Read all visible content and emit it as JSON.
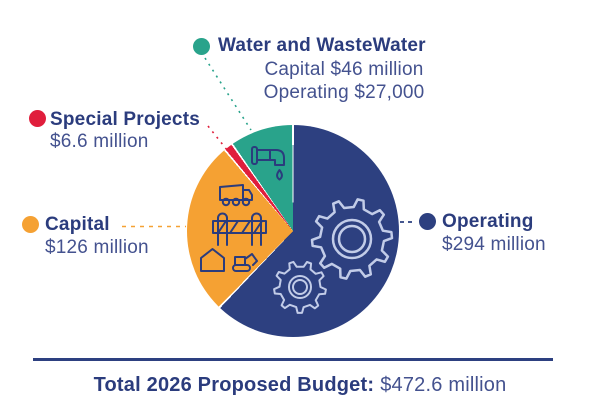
{
  "colors": {
    "background": "#ffffff",
    "operating": "#2D4080",
    "capital": "#F5A133",
    "special_projects": "#E01E3C",
    "water": "#29A38B",
    "heading_text": "#2B3C7D",
    "body_text": "#44528F",
    "gear_outline": "#C2CCE8",
    "icon_outline": "#2B3C7D",
    "rule": "#2D4080"
  },
  "chart_data": {
    "type": "pie",
    "direction": "clockwise",
    "start_angle_deg": 0,
    "slices": [
      {
        "key": "operating",
        "label": "Operating",
        "value": 294,
        "display": "$294 million",
        "color": "#2D4080"
      },
      {
        "key": "capital",
        "label": "Capital",
        "value": 126,
        "display": "$126 million",
        "color": "#F5A133"
      },
      {
        "key": "special_projects",
        "label": "Special Projects",
        "value": 6.6,
        "display": "$6.6 million",
        "color": "#E01E3C"
      },
      {
        "key": "water",
        "label": "Water and WasteWater",
        "value": 46.03,
        "display": "Capital $46 million; Operating $27,000",
        "color": "#29A38B"
      }
    ],
    "total": {
      "label": "Total 2026 Proposed Budget:",
      "value": "$472.6 million"
    }
  },
  "legend": {
    "water": {
      "label": "Water and WasteWater",
      "line1": "Capital $46 million",
      "line2": "Operating $27,000"
    },
    "special_projects": {
      "label": "Special Projects",
      "value": "$6.6 million"
    },
    "capital": {
      "label": "Capital",
      "value": "$126 million"
    },
    "operating": {
      "label": "Operating",
      "value": "$294 million"
    }
  },
  "footer": {
    "label": "Total 2026 Proposed Budget:",
    "value": "$472.6 million"
  },
  "icons": {
    "water_slice": "faucet-with-drop-icon",
    "capital_slice": [
      "dump-truck-icon",
      "construction-barricade-icon",
      "shed-icon",
      "excavator-icon"
    ],
    "operating_slice": [
      "gear-large-icon",
      "gear-small-icon"
    ]
  }
}
